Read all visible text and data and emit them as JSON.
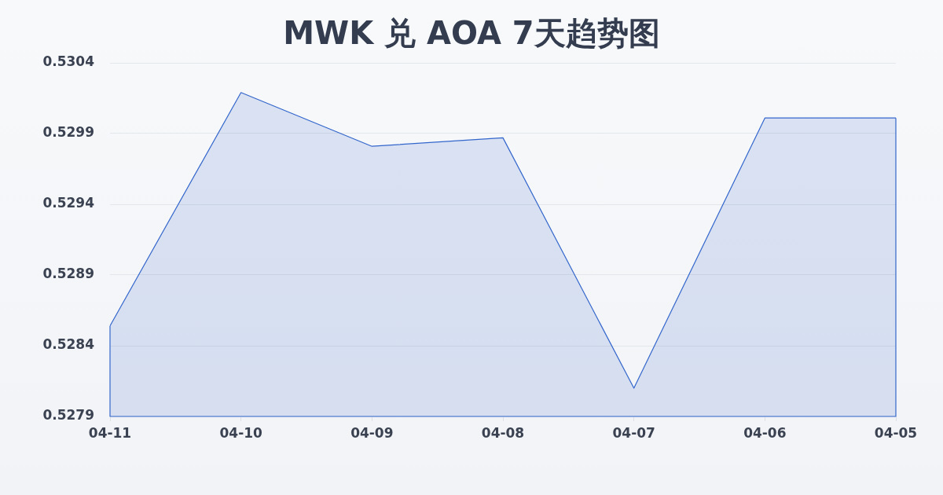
{
  "chart_data": {
    "type": "area",
    "title": "MWK 兑 AOA 7天趋势图",
    "categories": [
      "04-11",
      "04-10",
      "04-09",
      "04-08",
      "04-07",
      "04-06",
      "04-05"
    ],
    "series": [
      {
        "color": "#3366cc",
        "values": [
          0.52854,
          0.53019,
          0.52981,
          0.52987,
          0.5281,
          0.53001,
          0.53001
        ]
      }
    ],
    "ylim": [
      0.5279,
      0.5304
    ],
    "yticks": [
      0.5279,
      0.5284,
      0.5289,
      0.5294,
      0.5299,
      0.5304
    ],
    "grid": "y"
  }
}
